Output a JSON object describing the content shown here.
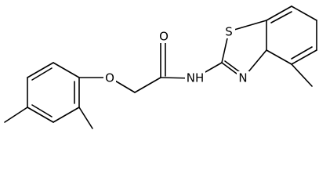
{
  "atoms": [
    "O",
    "O",
    "NH",
    "N",
    "S"
  ]
}
